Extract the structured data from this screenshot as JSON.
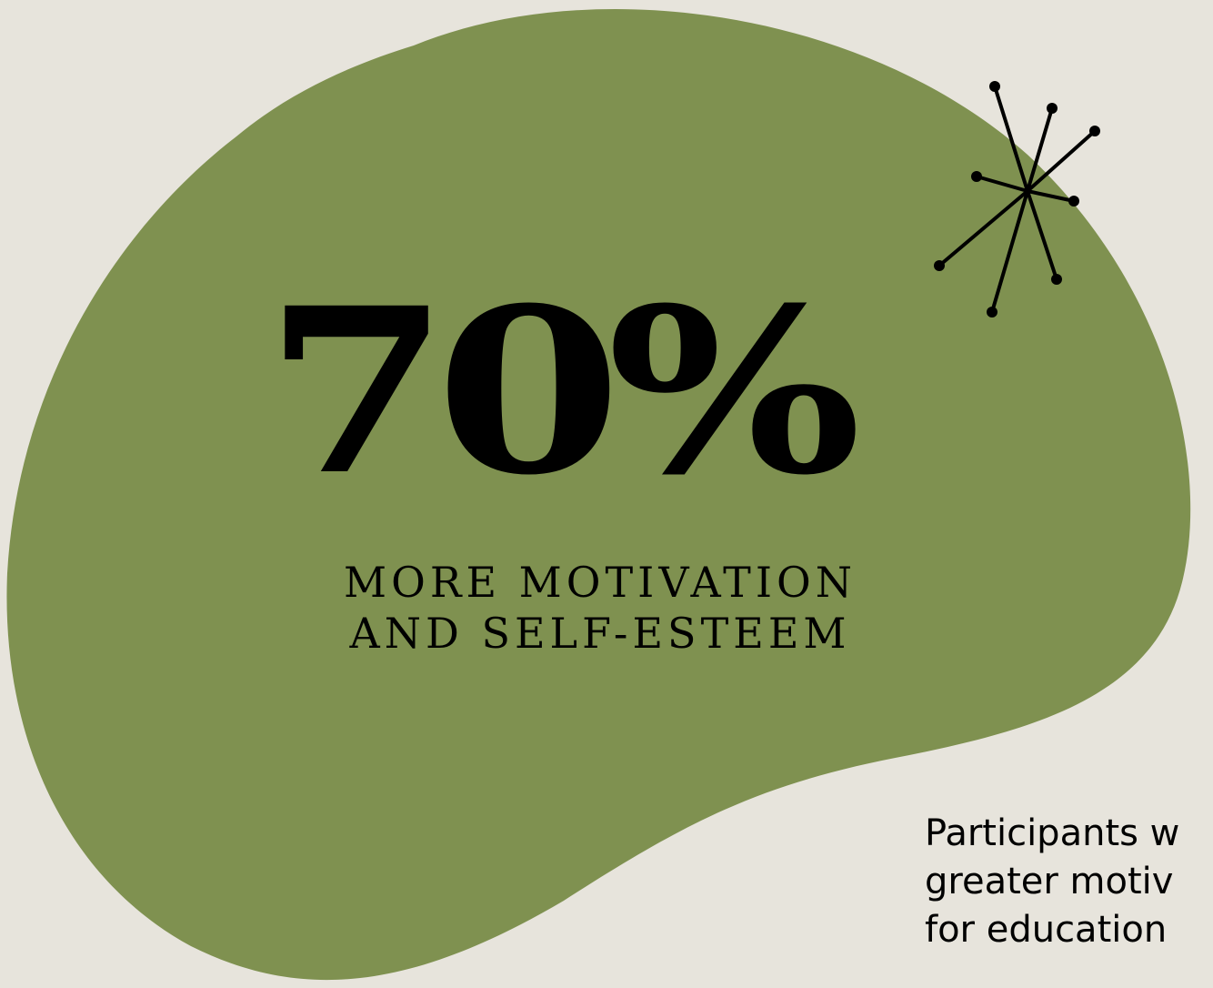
{
  "colors": {
    "background": "#e7e4dc",
    "blob": "#7f9150",
    "ink": "#000000"
  },
  "decoration": {
    "sparkle": "sparkle-star-icon"
  },
  "stat": {
    "value": "70%",
    "label_lines": [
      "MORE MOTIVATION",
      "AND SELF-ESTEEM"
    ]
  },
  "description": {
    "lines": [
      "Participants w",
      "greater motiv",
      "for education"
    ]
  }
}
